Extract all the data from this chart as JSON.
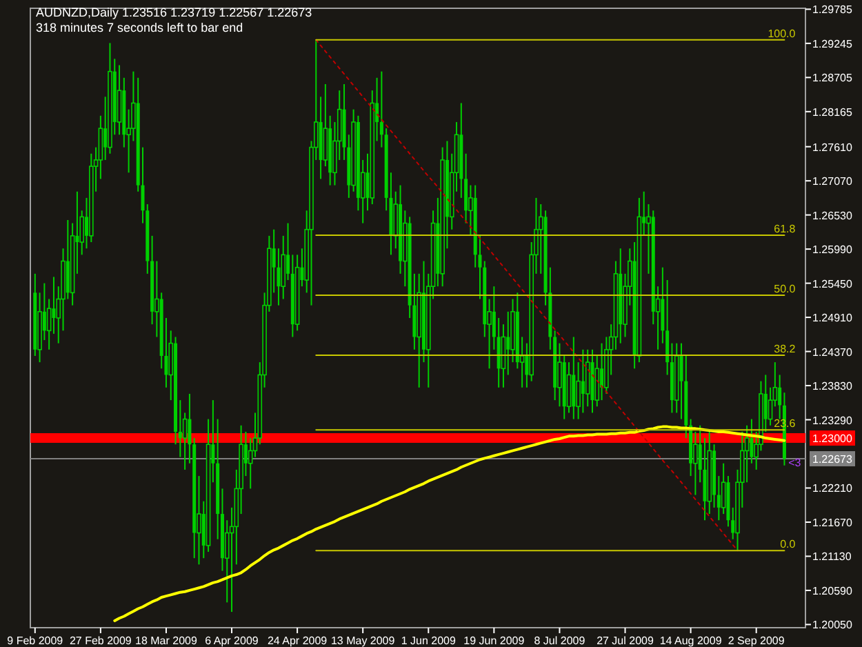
{
  "chart_data": {
    "type": "candlestick",
    "title": "AUDNZD,Daily  1.23516 1.23719 1.22567 1.22673",
    "subtitle": "318 minutes 7 seconds left to bar end",
    "color": "#00d000",
    "categories": [
      "9 Feb 2009",
      null,
      null,
      null,
      null,
      null,
      null,
      null,
      null,
      null,
      null,
      null,
      null,
      null,
      "27 Feb 2009",
      null,
      null,
      null,
      null,
      null,
      null,
      null,
      null,
      null,
      null,
      null,
      null,
      null,
      "18 Mar 2009",
      null,
      null,
      null,
      null,
      null,
      null,
      null,
      null,
      null,
      null,
      null,
      null,
      null,
      "6 Apr 2009",
      null,
      null,
      null,
      null,
      null,
      null,
      null,
      null,
      null,
      null,
      null,
      null,
      null,
      "24 Apr 2009",
      null,
      null,
      null,
      null,
      null,
      null,
      null,
      null,
      null,
      null,
      null,
      null,
      null,
      "13 May 2009",
      null,
      null,
      null,
      null,
      null,
      null,
      null,
      null,
      null,
      null,
      null,
      null,
      null,
      "1 Jun 2009",
      null,
      null,
      null,
      null,
      null,
      null,
      null,
      null,
      null,
      null,
      null,
      null,
      null,
      "19 Jun 2009",
      null,
      null,
      null,
      null,
      null,
      null,
      null,
      null,
      null,
      null,
      null,
      null,
      null,
      "8 Jul 2009",
      null,
      null,
      null,
      null,
      null,
      null,
      null,
      null,
      null,
      null,
      null,
      null,
      null,
      "27 Jul 2009",
      null,
      null,
      null,
      null,
      null,
      null,
      null,
      null,
      null,
      null,
      null,
      null,
      null,
      "14 Aug 2009",
      null,
      null,
      null,
      null,
      null,
      null,
      null,
      null,
      null,
      null,
      null,
      null,
      null,
      "2 Sep 2009",
      null,
      null,
      null,
      null,
      null,
      null
    ],
    "ohlc": [
      [
        1.253,
        1.256,
        1.243,
        1.244
      ],
      [
        1.244,
        1.253,
        1.242,
        1.25
      ],
      [
        1.25,
        1.2545,
        1.2455,
        1.247
      ],
      [
        1.247,
        1.252,
        1.244,
        1.2505
      ],
      [
        1.2505,
        1.2555,
        1.2465,
        1.249
      ],
      [
        1.249,
        1.254,
        1.245,
        1.252
      ],
      [
        1.252,
        1.26,
        1.247,
        1.258
      ],
      [
        1.258,
        1.2645,
        1.252,
        1.253
      ],
      [
        1.253,
        1.264,
        1.251,
        1.262
      ],
      [
        1.262,
        1.269,
        1.256,
        1.261
      ],
      [
        1.261,
        1.266,
        1.259,
        1.265
      ],
      [
        1.265,
        1.268,
        1.26,
        1.262
      ],
      [
        1.262,
        1.275,
        1.261,
        1.273
      ],
      [
        1.273,
        1.276,
        1.269,
        1.274
      ],
      [
        1.274,
        1.281,
        1.271,
        1.279
      ],
      [
        1.279,
        1.284,
        1.274,
        1.276
      ],
      [
        1.276,
        1.2925,
        1.275,
        1.288
      ],
      [
        1.288,
        1.29,
        1.278,
        1.28
      ],
      [
        1.28,
        1.289,
        1.278,
        1.285
      ],
      [
        1.285,
        1.287,
        1.276,
        1.278
      ],
      [
        1.278,
        1.282,
        1.272,
        1.279
      ],
      [
        1.279,
        1.288,
        1.277,
        1.283
      ],
      [
        1.283,
        1.287,
        1.269,
        1.27
      ],
      [
        1.27,
        1.276,
        1.264,
        1.266
      ],
      [
        1.266,
        1.267,
        1.256,
        1.258
      ],
      [
        1.258,
        1.262,
        1.248,
        1.25
      ],
      [
        1.25,
        1.258,
        1.246,
        1.252
      ],
      [
        1.252,
        1.253,
        1.241,
        1.243
      ],
      [
        1.243,
        1.249,
        1.238,
        1.24
      ],
      [
        1.24,
        1.247,
        1.236,
        1.245
      ],
      [
        1.245,
        1.246,
        1.229,
        1.231
      ],
      [
        1.231,
        1.236,
        1.227,
        1.23
      ],
      [
        1.23,
        1.234,
        1.225,
        1.233
      ],
      [
        1.233,
        1.237,
        1.226,
        1.229
      ],
      [
        1.229,
        1.23,
        1.211,
        1.215
      ],
      [
        1.215,
        1.224,
        1.21,
        1.218
      ],
      [
        1.218,
        1.22,
        1.211,
        1.213
      ],
      [
        1.213,
        1.233,
        1.212,
        1.229
      ],
      [
        1.229,
        1.236,
        1.223,
        1.226
      ],
      [
        1.226,
        1.233,
        1.214,
        1.218
      ],
      [
        1.218,
        1.222,
        1.209,
        1.211
      ],
      [
        1.211,
        1.217,
        1.204,
        1.215
      ],
      [
        1.215,
        1.219,
        1.2025,
        1.216
      ],
      [
        1.216,
        1.225,
        1.21,
        1.222
      ],
      [
        1.222,
        1.232,
        1.218,
        1.229
      ],
      [
        1.229,
        1.231,
        1.224,
        1.226
      ],
      [
        1.226,
        1.23,
        1.222,
        1.228
      ],
      [
        1.228,
        1.234,
        1.227,
        1.23
      ],
      [
        1.23,
        1.242,
        1.229,
        1.24
      ],
      [
        1.24,
        1.253,
        1.238,
        1.251
      ],
      [
        1.251,
        1.262,
        1.25,
        1.26
      ],
      [
        1.26,
        1.263,
        1.253,
        1.257
      ],
      [
        1.257,
        1.26,
        1.251,
        1.254
      ],
      [
        1.254,
        1.262,
        1.252,
        1.259
      ],
      [
        1.259,
        1.264,
        1.255,
        1.256
      ],
      [
        1.256,
        1.259,
        1.246,
        1.248
      ],
      [
        1.248,
        1.259,
        1.247,
        1.257
      ],
      [
        1.257,
        1.26,
        1.254,
        1.255
      ],
      [
        1.255,
        1.266,
        1.253,
        1.263
      ],
      [
        1.263,
        1.277,
        1.251,
        1.276
      ],
      [
        1.276,
        1.293,
        1.274,
        1.28
      ],
      [
        1.28,
        1.284,
        1.271,
        1.274
      ],
      [
        1.274,
        1.286,
        1.273,
        1.279
      ],
      [
        1.279,
        1.281,
        1.27,
        1.272
      ],
      [
        1.272,
        1.28,
        1.27,
        1.277
      ],
      [
        1.277,
        1.285,
        1.274,
        1.282
      ],
      [
        1.282,
        1.286,
        1.274,
        1.276
      ],
      [
        1.276,
        1.278,
        1.268,
        1.27
      ],
      [
        1.27,
        1.282,
        1.269,
        1.28
      ],
      [
        1.28,
        1.281,
        1.266,
        1.268
      ],
      [
        1.268,
        1.274,
        1.264,
        1.272
      ],
      [
        1.272,
        1.275,
        1.266,
        1.268
      ],
      [
        1.268,
        1.285,
        1.267,
        1.283
      ],
      [
        1.283,
        1.287,
        1.277,
        1.28
      ],
      [
        1.28,
        1.288,
        1.276,
        1.278
      ],
      [
        1.278,
        1.279,
        1.266,
        1.268
      ],
      [
        1.268,
        1.272,
        1.259,
        1.262
      ],
      [
        1.262,
        1.269,
        1.26,
        1.267
      ],
      [
        1.267,
        1.27,
        1.256,
        1.258
      ],
      [
        1.258,
        1.266,
        1.254,
        1.264
      ],
      [
        1.264,
        1.265,
        1.249,
        1.251
      ],
      [
        1.251,
        1.256,
        1.244,
        1.246
      ],
      [
        1.246,
        1.256,
        1.238,
        1.253
      ],
      [
        1.253,
        1.258,
        1.242,
        1.244
      ],
      [
        1.244,
        1.256,
        1.238,
        1.254
      ],
      [
        1.254,
        1.266,
        1.252,
        1.264
      ],
      [
        1.264,
        1.268,
        1.254,
        1.256
      ],
      [
        1.256,
        1.276,
        1.254,
        1.274
      ],
      [
        1.274,
        1.277,
        1.26,
        1.265
      ],
      [
        1.265,
        1.275,
        1.263,
        1.272
      ],
      [
        1.272,
        1.28,
        1.269,
        1.278
      ],
      [
        1.278,
        1.283,
        1.268,
        1.271
      ],
      [
        1.271,
        1.275,
        1.264,
        1.266
      ],
      [
        1.266,
        1.27,
        1.262,
        1.268
      ],
      [
        1.268,
        1.27,
        1.257,
        1.259
      ],
      [
        1.259,
        1.262,
        1.252,
        1.257
      ],
      [
        1.257,
        1.258,
        1.246,
        1.248
      ],
      [
        1.248,
        1.252,
        1.241,
        1.25
      ],
      [
        1.25,
        1.254,
        1.244,
        1.246
      ],
      [
        1.246,
        1.249,
        1.238,
        1.241
      ],
      [
        1.241,
        1.248,
        1.238,
        1.246
      ],
      [
        1.246,
        1.25,
        1.24,
        1.244
      ],
      [
        1.244,
        1.252,
        1.242,
        1.25
      ],
      [
        1.25,
        1.253,
        1.241,
        1.242
      ],
      [
        1.242,
        1.246,
        1.238,
        1.243
      ],
      [
        1.243,
        1.245,
        1.238,
        1.24
      ],
      [
        1.24,
        1.261,
        1.239,
        1.259
      ],
      [
        1.259,
        1.268,
        1.256,
        1.263
      ],
      [
        1.263,
        1.267,
        1.256,
        1.265
      ],
      [
        1.265,
        1.266,
        1.251,
        1.253
      ],
      [
        1.253,
        1.257,
        1.244,
        1.246
      ],
      [
        1.246,
        1.247,
        1.236,
        1.238
      ],
      [
        1.238,
        1.245,
        1.235,
        1.242
      ],
      [
        1.242,
        1.243,
        1.233,
        1.235
      ],
      [
        1.235,
        1.242,
        1.234,
        1.24
      ],
      [
        1.24,
        1.246,
        1.233,
        1.235
      ],
      [
        1.235,
        1.242,
        1.233,
        1.239
      ],
      [
        1.239,
        1.244,
        1.234,
        1.237
      ],
      [
        1.237,
        1.244,
        1.235,
        1.242
      ],
      [
        1.242,
        1.244,
        1.234,
        1.236
      ],
      [
        1.236,
        1.243,
        1.235,
        1.241
      ],
      [
        1.241,
        1.245,
        1.236,
        1.238
      ],
      [
        1.238,
        1.246,
        1.237,
        1.244
      ],
      [
        1.244,
        1.248,
        1.24,
        1.246
      ],
      [
        1.246,
        1.258,
        1.244,
        1.256
      ],
      [
        1.256,
        1.26,
        1.245,
        1.248
      ],
      [
        1.248,
        1.256,
        1.246,
        1.254
      ],
      [
        1.254,
        1.26,
        1.251,
        1.258
      ],
      [
        1.258,
        1.261,
        1.241,
        1.243
      ],
      [
        1.243,
        1.268,
        1.242,
        1.265
      ],
      [
        1.265,
        1.269,
        1.262,
        1.264
      ],
      [
        1.264,
        1.267,
        1.256,
        1.265
      ],
      [
        1.265,
        1.266,
        1.248,
        1.25
      ],
      [
        1.25,
        1.254,
        1.244,
        1.252
      ],
      [
        1.252,
        1.257,
        1.245,
        1.247
      ],
      [
        1.247,
        1.255,
        1.24,
        1.242
      ],
      [
        1.242,
        1.245,
        1.234,
        1.236
      ],
      [
        1.236,
        1.245,
        1.234,
        1.243
      ],
      [
        1.243,
        1.245,
        1.233,
        1.239
      ],
      [
        1.239,
        1.243,
        1.23,
        1.232
      ],
      [
        1.232,
        1.233,
        1.224,
        1.226
      ],
      [
        1.226,
        1.231,
        1.221,
        1.229
      ],
      [
        1.229,
        1.232,
        1.223,
        1.225
      ],
      [
        1.225,
        1.23,
        1.217,
        1.22
      ],
      [
        1.22,
        1.231,
        1.218,
        1.228
      ],
      [
        1.228,
        1.229,
        1.219,
        1.221
      ],
      [
        1.221,
        1.224,
        1.217,
        1.219
      ],
      [
        1.219,
        1.226,
        1.218,
        1.223
      ],
      [
        1.223,
        1.224,
        1.216,
        1.217
      ],
      [
        1.217,
        1.219,
        1.214,
        1.215
      ],
      [
        1.215,
        1.225,
        1.2122,
        1.223
      ],
      [
        1.223,
        1.231,
        1.219,
        1.228
      ],
      [
        1.228,
        1.232,
        1.223,
        1.23
      ],
      [
        1.23,
        1.233,
        1.226,
        1.227
      ],
      [
        1.227,
        1.231,
        1.225,
        1.229
      ],
      [
        1.229,
        1.239,
        1.228,
        1.237
      ],
      [
        1.237,
        1.24,
        1.231,
        1.233
      ],
      [
        1.233,
        1.238,
        1.232,
        1.236
      ],
      [
        1.236,
        1.242,
        1.235,
        1.238
      ],
      [
        1.238,
        1.24,
        1.233,
        1.2352
      ],
      [
        1.23516,
        1.23719,
        1.22567,
        1.22673
      ]
    ],
    "ylim": [
      1.2,
      1.298
    ],
    "yticks": [
      {
        "value": 1.29785,
        "label": "1.29785"
      },
      {
        "value": 1.29245,
        "label": "1.29245"
      },
      {
        "value": 1.28705,
        "label": "1.28705"
      },
      {
        "value": 1.28165,
        "label": "1.28165"
      },
      {
        "value": 1.2761,
        "label": "1.27610"
      },
      {
        "value": 1.2707,
        "label": "1.27070"
      },
      {
        "value": 1.2653,
        "label": "1.26530"
      },
      {
        "value": 1.2599,
        "label": "1.25990"
      },
      {
        "value": 1.2545,
        "label": "1.25450"
      },
      {
        "value": 1.2491,
        "label": "1.24910"
      },
      {
        "value": 1.2437,
        "label": "1.24370"
      },
      {
        "value": 1.2383,
        "label": "1.23830"
      },
      {
        "value": 1.2329,
        "label": "1.23290"
      },
      {
        "value": 1.2221,
        "label": "1.22210"
      },
      {
        "value": 1.2167,
        "label": "1.21670"
      },
      {
        "value": 1.2113,
        "label": "1.21130"
      },
      {
        "value": 1.2059,
        "label": "1.20590"
      },
      {
        "value": 1.2005,
        "label": "1.20050"
      }
    ],
    "series": [
      {
        "type": "line",
        "color": "#ffff00",
        "values": [
          null,
          null,
          null,
          null,
          null,
          null,
          null,
          null,
          null,
          null,
          null,
          null,
          null,
          null,
          null,
          null,
          null,
          1.2011,
          1.2015,
          1.2018,
          1.2022,
          1.2026,
          1.203,
          1.2033,
          1.2037,
          1.2041,
          1.2044,
          1.2048,
          1.205,
          1.2052,
          1.2054,
          1.2056,
          1.2057,
          1.2059,
          1.2061,
          1.2063,
          1.2065,
          1.2068,
          1.2071,
          1.2073,
          1.2076,
          1.2079,
          1.2082,
          1.2084,
          1.2087,
          1.2092,
          1.2098,
          1.2103,
          1.2108,
          1.2114,
          1.2119,
          1.2123,
          1.2126,
          1.213,
          1.2134,
          1.2138,
          1.2141,
          1.2145,
          1.2149,
          1.2152,
          1.2156,
          1.2159,
          1.2162,
          1.2165,
          1.2168,
          1.2172,
          1.2175,
          1.2178,
          1.2181,
          1.2184,
          1.2187,
          1.219,
          1.2193,
          1.2196,
          1.22,
          1.2203,
          1.2206,
          1.2209,
          1.2212,
          1.2215,
          1.2219,
          1.2222,
          1.2225,
          1.2228,
          1.2232,
          1.2235,
          1.2238,
          1.2241,
          1.2244,
          1.2247,
          1.225,
          1.2254,
          1.2257,
          1.226,
          1.2263,
          1.2266,
          1.2268,
          1.227,
          1.2272,
          1.2274,
          1.2276,
          1.2278,
          1.228,
          1.2282,
          1.2284,
          1.2286,
          1.2288,
          1.229,
          1.2292,
          1.2294,
          1.2296,
          1.2298,
          1.2299,
          1.2301,
          1.2303,
          1.2303,
          1.2304,
          1.2304,
          1.2305,
          1.2305,
          1.2306,
          1.2306,
          1.2306,
          1.2307,
          1.2307,
          1.2308,
          1.2308,
          1.2309,
          1.2309,
          1.2311,
          1.2312,
          1.2314,
          1.2315,
          1.2317,
          1.2318,
          1.2318,
          1.2317,
          1.2317,
          1.2316,
          1.2316,
          1.2315,
          1.2315,
          1.2314,
          1.2313,
          1.2312,
          1.2311,
          1.231,
          1.231,
          1.2309,
          1.2308,
          1.2307,
          1.2306,
          1.2305,
          1.2304,
          1.2303,
          1.2302,
          1.23,
          1.2299,
          1.2298,
          1.2297,
          1.2296
        ]
      },
      {
        "type": "line",
        "color": "#c00000",
        "line_style": "dotted",
        "values": [
          null,
          null,
          null,
          null,
          null,
          null,
          null,
          null,
          null,
          null,
          null,
          null,
          null,
          null,
          null,
          null,
          null,
          null,
          null,
          null,
          null,
          null,
          null,
          null,
          null,
          null,
          null,
          null,
          null,
          null,
          null,
          null,
          null,
          null,
          null,
          null,
          null,
          null,
          null,
          null,
          null,
          null,
          null,
          null,
          null,
          null,
          null,
          null,
          null,
          null,
          null,
          null,
          null,
          null,
          null,
          null,
          null,
          null,
          null,
          null,
          1.293,
          1.2921,
          1.2912,
          1.2903,
          1.2894,
          1.2885,
          1.2876,
          1.2867,
          1.2858,
          1.2849,
          1.284,
          1.2831,
          1.2822,
          1.2813,
          1.2804,
          1.2795,
          1.2786,
          1.2777,
          1.2768,
          1.2759,
          1.275,
          1.2741,
          1.2732,
          1.2723,
          1.2714,
          1.2706,
          1.2697,
          1.2688,
          1.2679,
          1.267,
          1.2661,
          1.2652,
          1.2643,
          1.2634,
          1.2625,
          1.2616,
          1.2607,
          1.2598,
          1.2589,
          1.258,
          1.2571,
          1.2562,
          1.2553,
          1.2544,
          1.2535,
          1.2526,
          1.2517,
          1.2508,
          1.2499,
          1.249,
          1.2481,
          1.2472,
          1.2463,
          1.2454,
          1.2445,
          1.2436,
          1.2427,
          1.2418,
          1.2409,
          1.24,
          1.2391,
          1.2382,
          1.2373,
          1.2364,
          1.2355,
          1.2346,
          1.2337,
          1.2328,
          1.2319,
          1.231,
          1.2301,
          1.2292,
          1.2283,
          1.2274,
          1.2265,
          1.2256,
          1.2248,
          1.2239,
          1.223,
          1.2221,
          1.2212,
          1.2203,
          1.2194,
          1.2185,
          1.2176,
          1.2167,
          1.2158,
          1.2149,
          1.214,
          1.2131,
          1.2122,
          null,
          null,
          null,
          null,
          null,
          null,
          null,
          null,
          null,
          null
        ]
      },
      {
        "type": "line",
        "name": "100.0",
        "color": "#c8c800",
        "values": [
          null,
          null,
          null,
          null,
          null,
          null,
          null,
          null,
          null,
          null,
          null,
          null,
          null,
          null,
          null,
          null,
          null,
          null,
          null,
          null,
          null,
          null,
          null,
          null,
          null,
          null,
          null,
          null,
          null,
          null,
          null,
          null,
          null,
          null,
          null,
          null,
          null,
          null,
          null,
          null,
          null,
          null,
          null,
          null,
          null,
          null,
          null,
          null,
          null,
          null,
          null,
          null,
          null,
          null,
          null,
          null,
          null,
          null,
          null,
          null,
          1.293,
          1.293,
          1.293,
          1.293,
          1.293,
          1.293,
          1.293,
          1.293,
          1.293,
          1.293,
          1.293,
          1.293,
          1.293,
          1.293,
          1.293,
          1.293,
          1.293,
          1.293,
          1.293,
          1.293,
          1.293,
          1.293,
          1.293,
          1.293,
          1.293,
          1.293,
          1.293,
          1.293,
          1.293,
          1.293,
          1.293,
          1.293,
          1.293,
          1.293,
          1.293,
          1.293,
          1.293,
          1.293,
          1.293,
          1.293,
          1.293,
          1.293,
          1.293,
          1.293,
          1.293,
          1.293,
          1.293,
          1.293,
          1.293,
          1.293,
          1.293,
          1.293,
          1.293,
          1.293,
          1.293,
          1.293,
          1.293,
          1.293,
          1.293,
          1.293,
          1.293,
          1.293,
          1.293,
          1.293,
          1.293,
          1.293,
          1.293,
          1.293,
          1.293,
          1.293,
          1.293,
          1.293,
          1.293,
          1.293,
          1.293,
          1.293,
          1.293,
          1.293,
          1.293,
          1.293,
          1.293,
          1.293,
          1.293,
          1.293,
          1.293,
          1.293,
          1.293,
          1.293,
          1.293,
          1.293,
          1.293,
          1.293,
          1.293,
          1.293,
          1.293,
          1.293,
          1.293,
          1.293,
          1.293,
          1.293,
          1.293
        ]
      },
      {
        "type": "line",
        "name": "61.8",
        "color": "#c8c800",
        "values": [
          null,
          null,
          null,
          null,
          null,
          null,
          null,
          null,
          null,
          null,
          null,
          null,
          null,
          null,
          null,
          null,
          null,
          null,
          null,
          null,
          null,
          null,
          null,
          null,
          null,
          null,
          null,
          null,
          null,
          null,
          null,
          null,
          null,
          null,
          null,
          null,
          null,
          null,
          null,
          null,
          null,
          null,
          null,
          null,
          null,
          null,
          null,
          null,
          null,
          null,
          null,
          null,
          null,
          null,
          null,
          null,
          null,
          null,
          null,
          null,
          1.2621,
          1.2621,
          1.2621,
          1.2621,
          1.2621,
          1.2621,
          1.2621,
          1.2621,
          1.2621,
          1.2621,
          1.2621,
          1.2621,
          1.2621,
          1.2621,
          1.2621,
          1.2621,
          1.2621,
          1.2621,
          1.2621,
          1.2621,
          1.2621,
          1.2621,
          1.2621,
          1.2621,
          1.2621,
          1.2621,
          1.2621,
          1.2621,
          1.2621,
          1.2621,
          1.2621,
          1.2621,
          1.2621,
          1.2621,
          1.2621,
          1.2621,
          1.2621,
          1.2621,
          1.2621,
          1.2621,
          1.2621,
          1.2621,
          1.2621,
          1.2621,
          1.2621,
          1.2621,
          1.2621,
          1.2621,
          1.2621,
          1.2621,
          1.2621,
          1.2621,
          1.2621,
          1.2621,
          1.2621,
          1.2621,
          1.2621,
          1.2621,
          1.2621,
          1.2621,
          1.2621,
          1.2621,
          1.2621,
          1.2621,
          1.2621,
          1.2621,
          1.2621,
          1.2621,
          1.2621,
          1.2621,
          1.2621,
          1.2621,
          1.2621,
          1.2621,
          1.2621,
          1.2621,
          1.2621,
          1.2621,
          1.2621,
          1.2621,
          1.2621,
          1.2621,
          1.2621,
          1.2621,
          1.2621,
          1.2621,
          1.2621,
          1.2621,
          1.2621,
          1.2621,
          1.2621,
          1.2621,
          1.2621,
          1.2621,
          1.2621,
          1.2621,
          1.2621,
          1.2621,
          1.2621,
          1.2621,
          1.2621
        ]
      },
      {
        "type": "line",
        "name": "50.0",
        "color": "#c8c800",
        "values": [
          null,
          null,
          null,
          null,
          null,
          null,
          null,
          null,
          null,
          null,
          null,
          null,
          null,
          null,
          null,
          null,
          null,
          null,
          null,
          null,
          null,
          null,
          null,
          null,
          null,
          null,
          null,
          null,
          null,
          null,
          null,
          null,
          null,
          null,
          null,
          null,
          null,
          null,
          null,
          null,
          null,
          null,
          null,
          null,
          null,
          null,
          null,
          null,
          null,
          null,
          null,
          null,
          null,
          null,
          null,
          null,
          null,
          null,
          null,
          null,
          1.2526,
          1.2526,
          1.2526,
          1.2526,
          1.2526,
          1.2526,
          1.2526,
          1.2526,
          1.2526,
          1.2526,
          1.2526,
          1.2526,
          1.2526,
          1.2526,
          1.2526,
          1.2526,
          1.2526,
          1.2526,
          1.2526,
          1.2526,
          1.2526,
          1.2526,
          1.2526,
          1.2526,
          1.2526,
          1.2526,
          1.2526,
          1.2526,
          1.2526,
          1.2526,
          1.2526,
          1.2526,
          1.2526,
          1.2526,
          1.2526,
          1.2526,
          1.2526,
          1.2526,
          1.2526,
          1.2526,
          1.2526,
          1.2526,
          1.2526,
          1.2526,
          1.2526,
          1.2526,
          1.2526,
          1.2526,
          1.2526,
          1.2526,
          1.2526,
          1.2526,
          1.2526,
          1.2526,
          1.2526,
          1.2526,
          1.2526,
          1.2526,
          1.2526,
          1.2526,
          1.2526,
          1.2526,
          1.2526,
          1.2526,
          1.2526,
          1.2526,
          1.2526,
          1.2526,
          1.2526,
          1.2526,
          1.2526,
          1.2526,
          1.2526,
          1.2526,
          1.2526,
          1.2526,
          1.2526,
          1.2526,
          1.2526,
          1.2526,
          1.2526,
          1.2526,
          1.2526,
          1.2526,
          1.2526,
          1.2526,
          1.2526,
          1.2526,
          1.2526,
          1.2526,
          1.2526,
          1.2526,
          1.2526,
          1.2526,
          1.2526,
          1.2526,
          1.2526,
          1.2526,
          1.2526,
          1.2526,
          1.2526
        ]
      },
      {
        "type": "line",
        "name": "38.2",
        "color": "#c8c800",
        "values": [
          null,
          null,
          null,
          null,
          null,
          null,
          null,
          null,
          null,
          null,
          null,
          null,
          null,
          null,
          null,
          null,
          null,
          null,
          null,
          null,
          null,
          null,
          null,
          null,
          null,
          null,
          null,
          null,
          null,
          null,
          null,
          null,
          null,
          null,
          null,
          null,
          null,
          null,
          null,
          null,
          null,
          null,
          null,
          null,
          null,
          null,
          null,
          null,
          null,
          null,
          null,
          null,
          null,
          null,
          null,
          null,
          null,
          null,
          null,
          null,
          1.2431,
          1.2431,
          1.2431,
          1.2431,
          1.2431,
          1.2431,
          1.2431,
          1.2431,
          1.2431,
          1.2431,
          1.2431,
          1.2431,
          1.2431,
          1.2431,
          1.2431,
          1.2431,
          1.2431,
          1.2431,
          1.2431,
          1.2431,
          1.2431,
          1.2431,
          1.2431,
          1.2431,
          1.2431,
          1.2431,
          1.2431,
          1.2431,
          1.2431,
          1.2431,
          1.2431,
          1.2431,
          1.2431,
          1.2431,
          1.2431,
          1.2431,
          1.2431,
          1.2431,
          1.2431,
          1.2431,
          1.2431,
          1.2431,
          1.2431,
          1.2431,
          1.2431,
          1.2431,
          1.2431,
          1.2431,
          1.2431,
          1.2431,
          1.2431,
          1.2431,
          1.2431,
          1.2431,
          1.2431,
          1.2431,
          1.2431,
          1.2431,
          1.2431,
          1.2431,
          1.2431,
          1.2431,
          1.2431,
          1.2431,
          1.2431,
          1.2431,
          1.2431,
          1.2431,
          1.2431,
          1.2431,
          1.2431,
          1.2431,
          1.2431,
          1.2431,
          1.2431,
          1.2431,
          1.2431,
          1.2431,
          1.2431,
          1.2431,
          1.2431,
          1.2431,
          1.2431,
          1.2431,
          1.2431,
          1.2431,
          1.2431,
          1.2431,
          1.2431,
          1.2431,
          1.2431,
          1.2431,
          1.2431,
          1.2431,
          1.2431,
          1.2431,
          1.2431,
          1.2431,
          1.2431,
          1.2431,
          1.2431
        ]
      },
      {
        "type": "line",
        "name": "23.6",
        "color": "#c8c800",
        "values": [
          null,
          null,
          null,
          null,
          null,
          null,
          null,
          null,
          null,
          null,
          null,
          null,
          null,
          null,
          null,
          null,
          null,
          null,
          null,
          null,
          null,
          null,
          null,
          null,
          null,
          null,
          null,
          null,
          null,
          null,
          null,
          null,
          null,
          null,
          null,
          null,
          null,
          null,
          null,
          null,
          null,
          null,
          null,
          null,
          null,
          null,
          null,
          null,
          null,
          null,
          null,
          null,
          null,
          null,
          null,
          null,
          null,
          null,
          null,
          null,
          1.2313,
          1.2313,
          1.2313,
          1.2313,
          1.2313,
          1.2313,
          1.2313,
          1.2313,
          1.2313,
          1.2313,
          1.2313,
          1.2313,
          1.2313,
          1.2313,
          1.2313,
          1.2313,
          1.2313,
          1.2313,
          1.2313,
          1.2313,
          1.2313,
          1.2313,
          1.2313,
          1.2313,
          1.2313,
          1.2313,
          1.2313,
          1.2313,
          1.2313,
          1.2313,
          1.2313,
          1.2313,
          1.2313,
          1.2313,
          1.2313,
          1.2313,
          1.2313,
          1.2313,
          1.2313,
          1.2313,
          1.2313,
          1.2313,
          1.2313,
          1.2313,
          1.2313,
          1.2313,
          1.2313,
          1.2313,
          1.2313,
          1.2313,
          1.2313,
          1.2313,
          1.2313,
          1.2313,
          1.2313,
          1.2313,
          1.2313,
          1.2313,
          1.2313,
          1.2313,
          1.2313,
          1.2313,
          1.2313,
          1.2313,
          1.2313,
          1.2313,
          1.2313,
          1.2313,
          1.2313,
          1.2313,
          1.2313,
          1.2313,
          1.2313,
          1.2313,
          1.2313,
          1.2313,
          1.2313,
          1.2313,
          1.2313,
          1.2313,
          1.2313,
          1.2313,
          1.2313,
          1.2313,
          1.2313,
          1.2313,
          1.2313,
          1.2313,
          1.2313,
          1.2313,
          1.2313,
          1.2313,
          1.2313,
          1.2313,
          1.2313,
          1.2313,
          1.2313,
          1.2313,
          1.2313,
          1.2313,
          1.2313
        ]
      },
      {
        "type": "line",
        "name": "0.0",
        "color": "#c8c800",
        "values": [
          null,
          null,
          null,
          null,
          null,
          null,
          null,
          null,
          null,
          null,
          null,
          null,
          null,
          null,
          null,
          null,
          null,
          null,
          null,
          null,
          null,
          null,
          null,
          null,
          null,
          null,
          null,
          null,
          null,
          null,
          null,
          null,
          null,
          null,
          null,
          null,
          null,
          null,
          null,
          null,
          null,
          null,
          null,
          null,
          null,
          null,
          null,
          null,
          null,
          null,
          null,
          null,
          null,
          null,
          null,
          null,
          null,
          null,
          null,
          null,
          1.2122,
          1.2122,
          1.2122,
          1.2122,
          1.2122,
          1.2122,
          1.2122,
          1.2122,
          1.2122,
          1.2122,
          1.2122,
          1.2122,
          1.2122,
          1.2122,
          1.2122,
          1.2122,
          1.2122,
          1.2122,
          1.2122,
          1.2122,
          1.2122,
          1.2122,
          1.2122,
          1.2122,
          1.2122,
          1.2122,
          1.2122,
          1.2122,
          1.2122,
          1.2122,
          1.2122,
          1.2122,
          1.2122,
          1.2122,
          1.2122,
          1.2122,
          1.2122,
          1.2122,
          1.2122,
          1.2122,
          1.2122,
          1.2122,
          1.2122,
          1.2122,
          1.2122,
          1.2122,
          1.2122,
          1.2122,
          1.2122,
          1.2122,
          1.2122,
          1.2122,
          1.2122,
          1.2122,
          1.2122,
          1.2122,
          1.2122,
          1.2122,
          1.2122,
          1.2122,
          1.2122,
          1.2122,
          1.2122,
          1.2122,
          1.2122,
          1.2122,
          1.2122,
          1.2122,
          1.2122,
          1.2122,
          1.2122,
          1.2122,
          1.2122,
          1.2122,
          1.2122,
          1.2122,
          1.2122,
          1.2122,
          1.2122,
          1.2122,
          1.2122,
          1.2122,
          1.2122,
          1.2122,
          1.2122,
          1.2122,
          1.2122,
          1.2122,
          1.2122,
          1.2122,
          1.2122,
          1.2122,
          1.2122,
          1.2122,
          1.2122,
          1.2122,
          1.2122,
          1.2122,
          1.2122,
          1.2122,
          1.2122
        ]
      }
    ],
    "ref_lines": [
      {
        "axis": "y",
        "value": 1.23,
        "label": "1.23000",
        "color": "#ff0000"
      },
      {
        "axis": "y",
        "value": 1.22673,
        "label": "1.22673",
        "color": "#808080"
      }
    ],
    "annotations": [
      {
        "text": "<3",
        "y": 1.2262
      }
    ]
  }
}
